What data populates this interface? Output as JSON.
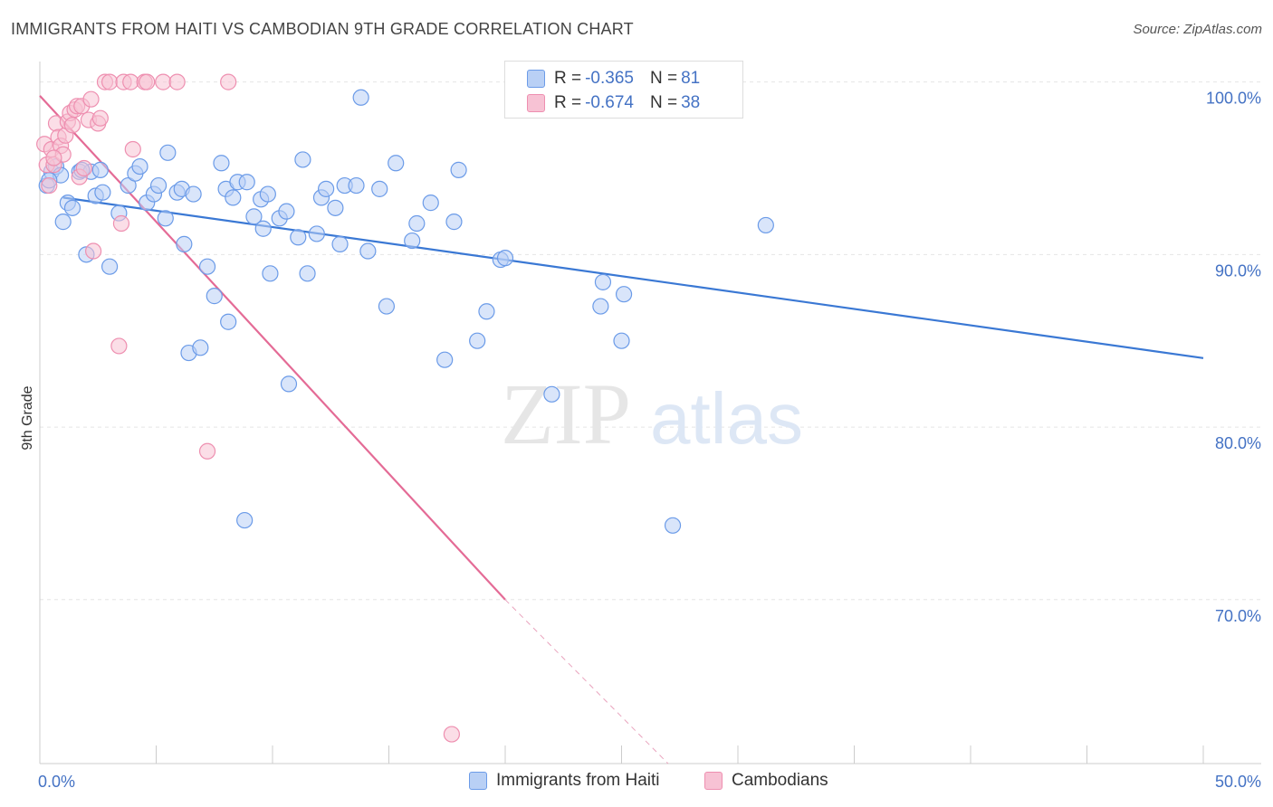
{
  "header": {
    "title": "IMMIGRANTS FROM HAITI VS CAMBODIAN 9TH GRADE CORRELATION CHART",
    "source": "Source: ZipAtlas.com"
  },
  "watermark": {
    "zip": "ZIP",
    "atlas": "atlas"
  },
  "legend": {
    "rows": [
      {
        "r_label": "R = ",
        "r_value": "-0.365",
        "n_label": "N = ",
        "n_value": "81",
        "color": "#6b9be8",
        "fill": "#b9d0f5"
      },
      {
        "r_label": "R = ",
        "r_value": "-0.674",
        "n_label": "N = ",
        "n_value": "38",
        "color": "#ee8fb0",
        "fill": "#f7c2d4"
      }
    ]
  },
  "chart_data": {
    "type": "scatter",
    "xlabel": "",
    "ylabel": "9th Grade",
    "xlim": [
      0,
      50
    ],
    "ylim": [
      60.5,
      101.5
    ],
    "x_tick_labels": [
      "0.0%",
      "50.0%"
    ],
    "y_ticks": [
      100,
      90,
      80,
      70
    ],
    "y_tick_labels": [
      "100.0%",
      "90.0%",
      "80.0%",
      "70.0%"
    ],
    "grid": true,
    "legend_position": "bottom",
    "series": [
      {
        "name": "Immigrants from Haiti",
        "color": "#6b9be8",
        "fill": "#b9d0f5",
        "trend": {
          "x0": 1.0,
          "y0": 93.3,
          "x1": 50.0,
          "y1": 84.0
        },
        "points": [
          [
            0.3,
            94.0
          ],
          [
            0.5,
            94.8
          ],
          [
            0.7,
            95.1
          ],
          [
            0.9,
            94.6
          ],
          [
            1.0,
            91.9
          ],
          [
            1.2,
            93.0
          ],
          [
            1.4,
            92.7
          ],
          [
            1.7,
            94.8
          ],
          [
            2.0,
            90.0
          ],
          [
            2.2,
            94.8
          ],
          [
            2.4,
            93.4
          ],
          [
            2.6,
            94.9
          ],
          [
            3.0,
            89.3
          ],
          [
            3.4,
            92.4
          ],
          [
            3.8,
            94.0
          ],
          [
            4.1,
            94.7
          ],
          [
            4.3,
            95.1
          ],
          [
            4.6,
            93.0
          ],
          [
            4.9,
            93.5
          ],
          [
            5.1,
            94.0
          ],
          [
            5.4,
            92.1
          ],
          [
            5.5,
            95.9
          ],
          [
            5.9,
            93.6
          ],
          [
            6.1,
            93.8
          ],
          [
            6.2,
            90.6
          ],
          [
            6.4,
            84.3
          ],
          [
            6.6,
            93.5
          ],
          [
            6.9,
            84.6
          ],
          [
            7.2,
            89.3
          ],
          [
            7.5,
            87.6
          ],
          [
            7.8,
            95.3
          ],
          [
            8.0,
            93.8
          ],
          [
            8.1,
            86.1
          ],
          [
            8.3,
            93.3
          ],
          [
            8.5,
            94.2
          ],
          [
            8.8,
            74.6
          ],
          [
            8.9,
            94.2
          ],
          [
            9.2,
            92.2
          ],
          [
            9.5,
            93.2
          ],
          [
            9.6,
            91.5
          ],
          [
            9.8,
            93.5
          ],
          [
            9.9,
            88.9
          ],
          [
            10.3,
            92.1
          ],
          [
            10.6,
            92.5
          ],
          [
            10.7,
            82.5
          ],
          [
            11.1,
            91.0
          ],
          [
            11.3,
            95.5
          ],
          [
            11.5,
            88.9
          ],
          [
            11.9,
            91.2
          ],
          [
            12.1,
            93.3
          ],
          [
            12.3,
            93.8
          ],
          [
            12.7,
            92.7
          ],
          [
            12.9,
            90.6
          ],
          [
            13.1,
            94.0
          ],
          [
            13.6,
            94.0
          ],
          [
            13.8,
            99.1
          ],
          [
            14.1,
            90.2
          ],
          [
            14.6,
            93.8
          ],
          [
            14.9,
            87.0
          ],
          [
            15.3,
            95.3
          ],
          [
            16.0,
            90.8
          ],
          [
            16.2,
            91.8
          ],
          [
            16.8,
            93.0
          ],
          [
            17.4,
            83.9
          ],
          [
            17.8,
            91.9
          ],
          [
            18.0,
            94.9
          ],
          [
            18.8,
            85.0
          ],
          [
            19.2,
            86.7
          ],
          [
            19.8,
            89.7
          ],
          [
            20.0,
            89.8
          ],
          [
            22.0,
            81.9
          ],
          [
            24.1,
            87.0
          ],
          [
            24.2,
            88.4
          ],
          [
            25.0,
            85.0
          ],
          [
            25.1,
            87.7
          ],
          [
            26.5,
            100.0
          ],
          [
            27.2,
            74.3
          ],
          [
            31.2,
            91.7
          ],
          [
            0.4,
            94.3
          ],
          [
            1.8,
            94.9
          ],
          [
            2.7,
            93.6
          ]
        ]
      },
      {
        "name": "Cambodians",
        "color": "#ee8fb0",
        "fill": "#f7c2d4",
        "trend": {
          "x0": 0.0,
          "y0": 99.2,
          "x1": 20.0,
          "y1": 70.0
        },
        "trend_dashed": {
          "x0": 20.0,
          "y0": 70.0,
          "x1": 27.0,
          "y1": 60.5
        },
        "points": [
          [
            0.2,
            96.4
          ],
          [
            0.3,
            95.2
          ],
          [
            0.4,
            94.0
          ],
          [
            0.5,
            96.1
          ],
          [
            0.6,
            95.2
          ],
          [
            0.7,
            97.6
          ],
          [
            0.8,
            96.8
          ],
          [
            0.9,
            96.3
          ],
          [
            1.0,
            95.8
          ],
          [
            1.1,
            96.9
          ],
          [
            1.2,
            97.7
          ],
          [
            1.3,
            98.2
          ],
          [
            1.4,
            97.5
          ],
          [
            1.5,
            98.4
          ],
          [
            1.6,
            98.6
          ],
          [
            1.7,
            94.5
          ],
          [
            1.8,
            98.6
          ],
          [
            1.9,
            95.0
          ],
          [
            2.1,
            97.8
          ],
          [
            2.2,
            99.0
          ],
          [
            2.3,
            90.2
          ],
          [
            2.5,
            97.6
          ],
          [
            2.6,
            97.9
          ],
          [
            2.8,
            100.0
          ],
          [
            3.0,
            100.0
          ],
          [
            3.6,
            100.0
          ],
          [
            3.9,
            100.0
          ],
          [
            4.5,
            100.0
          ],
          [
            4.6,
            100.0
          ],
          [
            5.3,
            100.0
          ],
          [
            5.9,
            100.0
          ],
          [
            8.1,
            100.0
          ],
          [
            3.4,
            84.7
          ],
          [
            3.5,
            91.8
          ],
          [
            4.0,
            96.1
          ],
          [
            7.2,
            78.6
          ],
          [
            17.7,
            62.2
          ],
          [
            0.6,
            95.6
          ]
        ]
      }
    ]
  }
}
